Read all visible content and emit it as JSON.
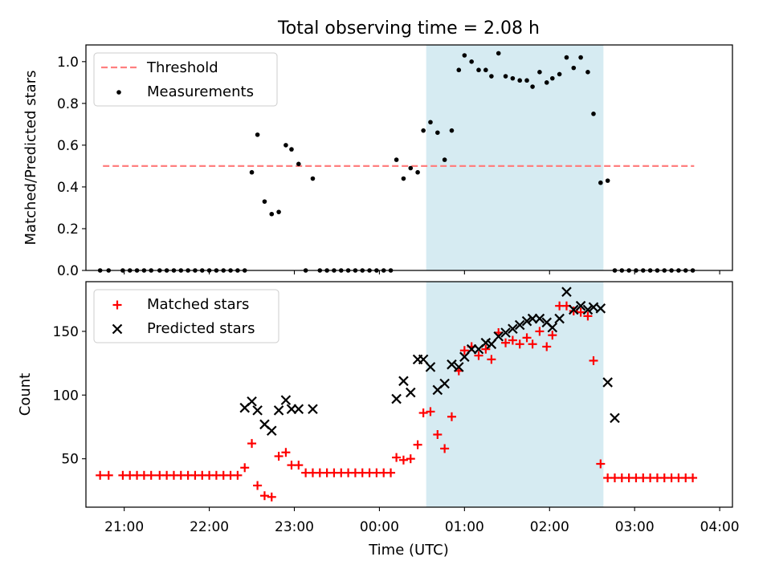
{
  "figure": {
    "title": "Total observing time = 2.08 h"
  },
  "colors": {
    "threshold": "#ff7f7f",
    "measurements": "#000000",
    "matched": "#ff0000",
    "predicted": "#000000",
    "shade": "#add8e6"
  },
  "chart_data": [
    {
      "type": "scatter",
      "title": "Total observing time = 2.08 h",
      "xlabel": "",
      "ylabel": "Matched/Predicted stars",
      "ylim": [
        0,
        1.08
      ],
      "yticks": [
        0.0,
        0.2,
        0.4,
        0.6,
        0.8,
        1.0
      ],
      "ytick_labels": [
        "0.0",
        "0.2",
        "0.4",
        "0.6",
        "0.8",
        "1.0"
      ],
      "xlim_hours": [
        20.55,
        28.15
      ],
      "legend_position": "top-left",
      "highlight_span": {
        "start": "00:33",
        "end": "02:38"
      },
      "threshold": {
        "name": "Threshold",
        "value": 0.5,
        "x_start": "20:45",
        "x_end": "03:42"
      },
      "series": [
        {
          "name": "Measurements",
          "x": [
            "20:43",
            "20:49",
            "20:59",
            "21:04",
            "21:09",
            "21:14",
            "21:19",
            "21:25",
            "21:30",
            "21:35",
            "21:40",
            "21:45",
            "21:50",
            "21:55",
            "22:00",
            "22:05",
            "22:10",
            "22:15",
            "22:20",
            "22:25",
            "22:30",
            "22:34",
            "22:39",
            "22:44",
            "22:49",
            "22:54",
            "22:58",
            "23:03",
            "23:08",
            "23:13",
            "23:18",
            "23:23",
            "23:28",
            "23:33",
            "23:38",
            "23:43",
            "23:48",
            "23:53",
            "23:58",
            "00:03",
            "00:08",
            "00:12",
            "00:17",
            "00:22",
            "00:27",
            "00:31",
            "00:36",
            "00:41",
            "00:46",
            "00:51",
            "00:56",
            "01:00",
            "01:05",
            "01:10",
            "01:15",
            "01:19",
            "01:24",
            "01:29",
            "01:34",
            "01:39",
            "01:44",
            "01:48",
            "01:53",
            "01:58",
            "02:02",
            "02:07",
            "02:12",
            "02:17",
            "02:22",
            "02:27",
            "02:31",
            "02:36",
            "02:41",
            "02:46",
            "02:51",
            "02:56",
            "03:01",
            "03:06",
            "03:11",
            "03:16",
            "03:21",
            "03:26",
            "03:31",
            "03:36",
            "03:41"
          ],
          "y": [
            0,
            0,
            0,
            0,
            0,
            0,
            0,
            0,
            0,
            0,
            0,
            0,
            0,
            0,
            0,
            0,
            0,
            0,
            0,
            0,
            0.47,
            0.65,
            0.33,
            0.27,
            0.28,
            0.6,
            0.58,
            0.51,
            0,
            0.44,
            0,
            0,
            0,
            0,
            0,
            0,
            0,
            0,
            0,
            0,
            0,
            0.53,
            0.44,
            0.49,
            0.47,
            0.67,
            0.71,
            0.66,
            0.53,
            0.67,
            0.96,
            1.03,
            1,
            0.96,
            0.96,
            0.93,
            1.04,
            0.93,
            0.92,
            0.91,
            0.91,
            0.88,
            0.95,
            0.9,
            0.92,
            0.94,
            1.02,
            0.97,
            1.02,
            0.95,
            0.75,
            0.42,
            0.43,
            0,
            0,
            0,
            0,
            0,
            0,
            0,
            0,
            0,
            0,
            0,
            0
          ]
        }
      ]
    },
    {
      "type": "scatter",
      "title": "",
      "xlabel": "Time (UTC)",
      "ylabel": "Count",
      "ylim": [
        12,
        189
      ],
      "yticks": [
        50,
        100,
        150
      ],
      "ytick_labels": [
        "50",
        "100",
        "150"
      ],
      "xticks_hours": [
        21,
        22,
        23,
        24,
        25,
        26,
        27,
        28
      ],
      "xtick_labels": [
        "21:00",
        "22:00",
        "23:00",
        "00:00",
        "01:00",
        "02:00",
        "03:00",
        "04:00"
      ],
      "xlim_hours": [
        20.55,
        28.15
      ],
      "legend_position": "top-left",
      "highlight_span": {
        "start": "00:33",
        "end": "02:38"
      },
      "series": [
        {
          "name": "Matched stars",
          "marker": "plus",
          "x": [
            "20:43",
            "20:49",
            "20:59",
            "21:04",
            "21:09",
            "21:14",
            "21:19",
            "21:25",
            "21:30",
            "21:35",
            "21:40",
            "21:45",
            "21:50",
            "21:55",
            "22:00",
            "22:05",
            "22:10",
            "22:15",
            "22:20",
            "22:25",
            "22:30",
            "22:34",
            "22:39",
            "22:44",
            "22:49",
            "22:54",
            "22:58",
            "23:03",
            "23:08",
            "23:13",
            "23:18",
            "23:23",
            "23:28",
            "23:33",
            "23:38",
            "23:43",
            "23:48",
            "23:53",
            "23:58",
            "00:03",
            "00:08",
            "00:12",
            "00:17",
            "00:22",
            "00:27",
            "00:31",
            "00:36",
            "00:41",
            "00:46",
            "00:51",
            "00:56",
            "01:00",
            "01:05",
            "01:10",
            "01:15",
            "01:19",
            "01:24",
            "01:29",
            "01:34",
            "01:39",
            "01:44",
            "01:48",
            "01:53",
            "01:58",
            "02:02",
            "02:07",
            "02:12",
            "02:17",
            "02:22",
            "02:27",
            "02:31",
            "02:36",
            "02:41",
            "02:46",
            "02:51",
            "02:56",
            "03:01",
            "03:06",
            "03:11",
            "03:16",
            "03:21",
            "03:26",
            "03:31",
            "03:36",
            "03:41"
          ],
          "y": [
            37,
            37,
            37,
            37,
            37,
            37,
            37,
            37,
            37,
            37,
            37,
            37,
            37,
            37,
            37,
            37,
            37,
            37,
            37,
            43,
            62,
            29,
            21,
            20,
            52,
            55,
            45,
            45,
            39,
            39,
            39,
            39,
            39,
            39,
            39,
            39,
            39,
            39,
            39,
            39,
            39,
            51,
            49,
            50,
            61,
            86,
            87,
            69,
            58,
            83,
            119,
            135,
            138,
            131,
            136,
            128,
            149,
            141,
            143,
            140,
            145,
            140,
            150,
            138,
            147,
            170,
            170,
            166,
            165,
            162,
            127,
            46,
            35,
            35,
            35,
            35,
            35,
            35,
            35,
            35,
            35,
            35,
            35,
            35,
            35
          ]
        },
        {
          "name": "Predicted stars",
          "marker": "x",
          "x": [
            "22:25",
            "22:30",
            "22:34",
            "22:39",
            "22:44",
            "22:49",
            "22:54",
            "22:58",
            "23:03",
            "23:13",
            "00:12",
            "00:17",
            "00:22",
            "00:27",
            "00:31",
            "00:36",
            "00:41",
            "00:46",
            "00:51",
            "00:56",
            "01:00",
            "01:05",
            "01:10",
            "01:15",
            "01:19",
            "01:24",
            "01:29",
            "01:34",
            "01:39",
            "01:44",
            "01:48",
            "01:53",
            "01:58",
            "02:02",
            "02:07",
            "02:12",
            "02:17",
            "02:22",
            "02:27",
            "02:31",
            "02:36",
            "02:41",
            "02:46"
          ],
          "y": [
            90,
            95,
            88,
            77,
            72,
            88,
            96,
            89,
            89,
            89,
            97,
            111,
            102,
            128,
            128,
            122,
            104,
            109,
            124,
            122,
            130,
            136,
            136,
            141,
            140,
            146,
            149,
            152,
            155,
            158,
            160,
            160,
            157,
            153,
            160,
            181,
            167,
            170,
            167,
            169,
            168,
            110,
            82
          ]
        }
      ]
    }
  ]
}
